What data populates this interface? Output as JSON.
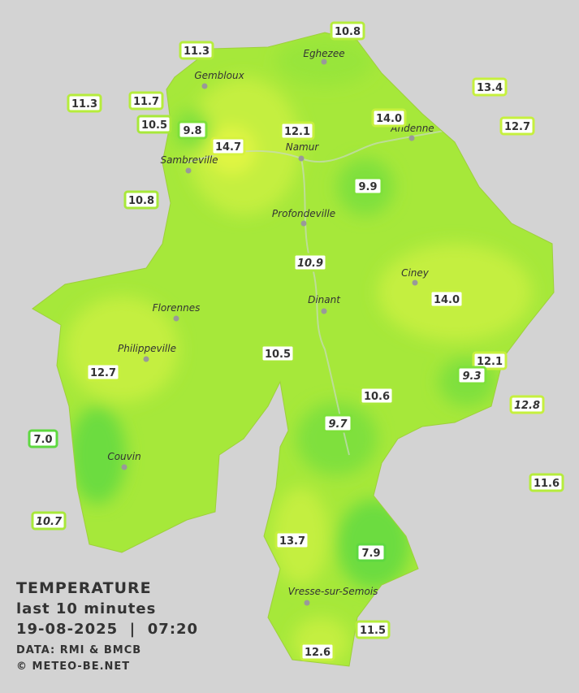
{
  "title": "TEMPERATURE",
  "subtitle": "last 10 minutes",
  "datetime": "19-08-2025  |  07:20",
  "source": "DATA: RMI & BMCB",
  "copyright": "© METEO-BE.NET",
  "towns": [
    "Eghezee",
    "Gembloux",
    "Andenne",
    "Namur",
    "Sambreville",
    "Profondeville",
    "Ciney",
    "Florennes",
    "Dinant",
    "Philippeville",
    "Couvin",
    "Vresse-sur-Semois"
  ],
  "stations": [
    {
      "label": "10.8",
      "color": "#b6ec3c"
    },
    {
      "label": "11.3",
      "color": "#b6ec3c"
    },
    {
      "label": "13.4",
      "color": "#c6f03e"
    },
    {
      "label": "11.3",
      "color": "#b6ec3c"
    },
    {
      "label": "11.7",
      "color": "#b6ec3c"
    },
    {
      "label": "14.0",
      "color": "#c6f03e"
    },
    {
      "label": "12.7",
      "color": "#c6f03e"
    },
    {
      "label": "10.5",
      "color": "#a8e83a"
    },
    {
      "label": "9.8",
      "color": "#7ee03a"
    },
    {
      "label": "12.1",
      "color": "#c6f03e"
    },
    {
      "label": "14.7",
      "color": "#d6f23e"
    },
    {
      "label": "9.9",
      "color": "#7ee03a"
    },
    {
      "label": "10.8",
      "color": "#a8e83a"
    },
    {
      "label": "10.9",
      "color": "#a8e83a",
      "italic": true
    },
    {
      "label": "14.0",
      "color": "#c6f03e"
    },
    {
      "label": "10.5",
      "color": "#a8e83a"
    },
    {
      "label": "12.1",
      "color": "#c6f03e"
    },
    {
      "label": "12.7",
      "color": "#c6f03e"
    },
    {
      "label": "9.3",
      "color": "#7ee03a",
      "italic": true
    },
    {
      "label": "10.6",
      "color": "#a8e83a"
    },
    {
      "label": "12.8",
      "color": "#c6f03e",
      "italic": true
    },
    {
      "label": "9.7",
      "color": "#7ee03a",
      "italic": true
    },
    {
      "label": "7.0",
      "color": "#5ed840"
    },
    {
      "label": "11.6",
      "color": "#b6ec3c"
    },
    {
      "label": "10.7",
      "color": "#a8e83a",
      "italic": true
    },
    {
      "label": "13.7",
      "color": "#c6f03e"
    },
    {
      "label": "7.9",
      "color": "#5ed840"
    },
    {
      "label": "11.5",
      "color": "#b6ec3c"
    },
    {
      "label": "12.6",
      "color": "#c6f03e"
    }
  ]
}
